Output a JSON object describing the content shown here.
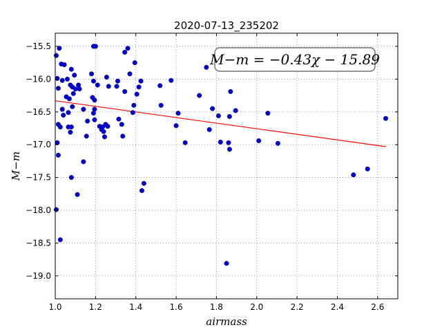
{
  "chart_data": {
    "type": "scatter",
    "title": "2020-07-13_235202",
    "xlabel": "airmass",
    "ylabel": "M−m",
    "xlim": [
      1.0,
      2.7
    ],
    "ylim": [
      -19.35,
      -15.3
    ],
    "y_inverted": true,
    "xticks": [
      1.0,
      1.2,
      1.4,
      1.6,
      1.8,
      2.0,
      2.2,
      2.4,
      2.6
    ],
    "xtick_labels": [
      "1.0",
      "1.2",
      "1.4",
      "1.6",
      "1.8",
      "2.0",
      "2.2",
      "2.4",
      "2.6"
    ],
    "yticks": [
      -15.5,
      -16.0,
      -16.5,
      -17.0,
      -17.5,
      -18.0,
      -18.5,
      -19.0
    ],
    "ytick_labels": [
      "−15.5",
      "−16.0",
      "−16.5",
      "−17.0",
      "−17.5",
      "−18.0",
      "−18.5",
      "−19.0"
    ],
    "grid": true,
    "annotation": "M−m = −0.43χ − 15.89",
    "fit_line": {
      "x": [
        1.0,
        2.64
      ],
      "y": [
        -16.33,
        -17.03
      ],
      "color": "#ff0000"
    },
    "point_color": "#0000cc",
    "points": [
      {
        "x": 1.005,
        "y": -15.64
      },
      {
        "x": 1.01,
        "y": -15.99
      },
      {
        "x": 1.015,
        "y": -16.14
      },
      {
        "x": 1.005,
        "y": -17.99
      },
      {
        "x": 1.02,
        "y": -15.53
      },
      {
        "x": 1.03,
        "y": -15.77
      },
      {
        "x": 1.045,
        "y": -15.78
      },
      {
        "x": 1.035,
        "y": -16.02
      },
      {
        "x": 1.06,
        "y": -16.0
      },
      {
        "x": 1.015,
        "y": -16.69
      },
      {
        "x": 1.025,
        "y": -16.73
      },
      {
        "x": 1.035,
        "y": -16.46
      },
      {
        "x": 1.04,
        "y": -16.55
      },
      {
        "x": 1.055,
        "y": -16.27
      },
      {
        "x": 1.065,
        "y": -16.51
      },
      {
        "x": 1.07,
        "y": -16.3
      },
      {
        "x": 1.065,
        "y": -16.73
      },
      {
        "x": 1.08,
        "y": -16.73
      },
      {
        "x": 1.075,
        "y": -16.81
      },
      {
        "x": 1.085,
        "y": -16.42
      },
      {
        "x": 1.09,
        "y": -16.22
      },
      {
        "x": 1.085,
        "y": -16.12
      },
      {
        "x": 1.1,
        "y": -16.15
      },
      {
        "x": 1.095,
        "y": -15.94
      },
      {
        "x": 1.08,
        "y": -15.85
      },
      {
        "x": 1.075,
        "y": -16.09
      },
      {
        "x": 1.115,
        "y": -16.09
      },
      {
        "x": 1.12,
        "y": -16.15
      },
      {
        "x": 1.01,
        "y": -16.97
      },
      {
        "x": 1.015,
        "y": -17.16
      },
      {
        "x": 1.08,
        "y": -17.5
      },
      {
        "x": 1.11,
        "y": -17.76
      },
      {
        "x": 1.025,
        "y": -18.45
      },
      {
        "x": 1.14,
        "y": -17.26
      },
      {
        "x": 1.14,
        "y": -16.46
      },
      {
        "x": 1.155,
        "y": -16.87
      },
      {
        "x": 1.16,
        "y": -16.64
      },
      {
        "x": 1.18,
        "y": -15.92
      },
      {
        "x": 1.19,
        "y": -15.5
      },
      {
        "x": 1.2,
        "y": -15.5
      },
      {
        "x": 1.19,
        "y": -16.03
      },
      {
        "x": 1.185,
        "y": -16.28
      },
      {
        "x": 1.195,
        "y": -16.32
      },
      {
        "x": 1.21,
        "y": -16.09
      },
      {
        "x": 1.195,
        "y": -16.46
      },
      {
        "x": 1.19,
        "y": -16.52
      },
      {
        "x": 1.195,
        "y": -16.62
      },
      {
        "x": 1.22,
        "y": -16.72
      },
      {
        "x": 1.23,
        "y": -16.77
      },
      {
        "x": 1.24,
        "y": -16.8
      },
      {
        "x": 1.235,
        "y": -16.73
      },
      {
        "x": 1.25,
        "y": -16.69
      },
      {
        "x": 1.26,
        "y": -16.72
      },
      {
        "x": 1.245,
        "y": -16.88
      },
      {
        "x": 1.255,
        "y": -15.97
      },
      {
        "x": 1.265,
        "y": -16.11
      },
      {
        "x": 1.31,
        "y": -16.03
      },
      {
        "x": 1.305,
        "y": -16.11
      },
      {
        "x": 1.315,
        "y": -16.61
      },
      {
        "x": 1.33,
        "y": -16.69
      },
      {
        "x": 1.335,
        "y": -16.87
      },
      {
        "x": 1.345,
        "y": -16.19
      },
      {
        "x": 1.345,
        "y": -15.59
      },
      {
        "x": 1.36,
        "y": -15.53
      },
      {
        "x": 1.37,
        "y": -15.92
      },
      {
        "x": 1.385,
        "y": -16.51
      },
      {
        "x": 1.39,
        "y": -16.4
      },
      {
        "x": 1.395,
        "y": -15.75
      },
      {
        "x": 1.405,
        "y": -16.23
      },
      {
        "x": 1.415,
        "y": -16.12
      },
      {
        "x": 1.425,
        "y": -16.03
      },
      {
        "x": 1.44,
        "y": -17.59
      },
      {
        "x": 1.43,
        "y": -17.7
      },
      {
        "x": 1.52,
        "y": -16.1
      },
      {
        "x": 1.525,
        "y": -16.4
      },
      {
        "x": 1.575,
        "y": -16.02
      },
      {
        "x": 1.6,
        "y": -16.71
      },
      {
        "x": 1.61,
        "y": -16.52
      },
      {
        "x": 1.645,
        "y": -16.97
      },
      {
        "x": 1.715,
        "y": -16.25
      },
      {
        "x": 1.75,
        "y": -15.82
      },
      {
        "x": 1.765,
        "y": -16.77
      },
      {
        "x": 1.78,
        "y": -16.45
      },
      {
        "x": 1.81,
        "y": -16.56
      },
      {
        "x": 1.82,
        "y": -16.96
      },
      {
        "x": 1.85,
        "y": -18.81
      },
      {
        "x": 1.86,
        "y": -16.97
      },
      {
        "x": 1.865,
        "y": -17.07
      },
      {
        "x": 1.865,
        "y": -16.57
      },
      {
        "x": 1.87,
        "y": -16.19
      },
      {
        "x": 1.895,
        "y": -16.48
      },
      {
        "x": 2.01,
        "y": -16.94
      },
      {
        "x": 2.055,
        "y": -16.52
      },
      {
        "x": 2.105,
        "y": -16.98
      },
      {
        "x": 2.48,
        "y": -17.46
      },
      {
        "x": 2.55,
        "y": -17.37
      },
      {
        "x": 2.64,
        "y": -16.6
      }
    ]
  }
}
